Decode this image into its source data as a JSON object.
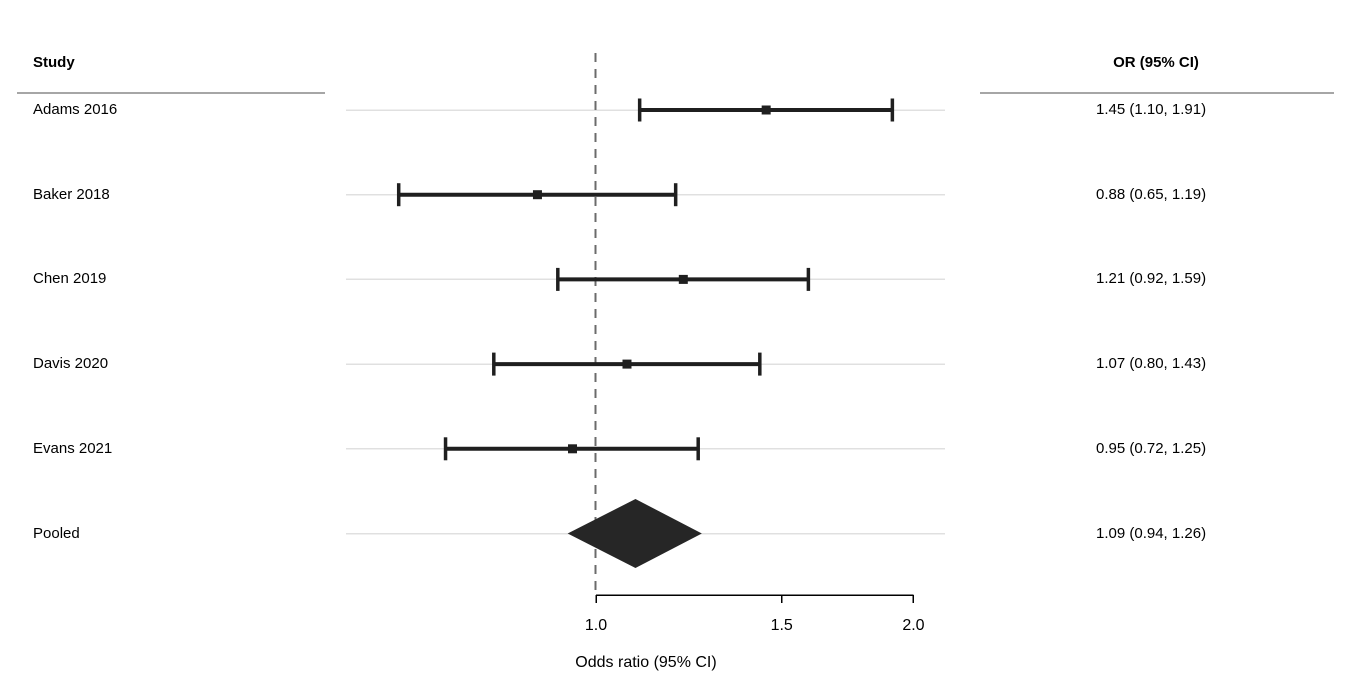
{
  "header": {
    "study_col": "Study",
    "or_col": "OR (95% CI)"
  },
  "chart_data": {
    "type": "forest",
    "title": "",
    "xlabel": "Odds ratio (95% CI)",
    "x_scale": "log",
    "x_ticks": [
      1.0,
      1.5,
      2.0
    ],
    "x_tick_labels": [
      "1.0",
      "1.5",
      "2.0"
    ],
    "reference_line": 1.0,
    "x_range_panel": [
      0.58,
      2.14
    ],
    "studies": [
      {
        "label": "Adams 2016",
        "or": 1.45,
        "ci_low": 1.1,
        "ci_high": 1.91,
        "display": "1.45 (1.10, 1.91)",
        "kind": "study"
      },
      {
        "label": "Baker 2018",
        "or": 0.88,
        "ci_low": 0.65,
        "ci_high": 1.19,
        "display": "0.88 (0.65, 1.19)",
        "kind": "study"
      },
      {
        "label": "Chen 2019",
        "or": 1.21,
        "ci_low": 0.92,
        "ci_high": 1.59,
        "display": "1.21 (0.92, 1.59)",
        "kind": "study"
      },
      {
        "label": "Davis 2020",
        "or": 1.07,
        "ci_low": 0.8,
        "ci_high": 1.43,
        "display": "1.07 (0.80, 1.43)",
        "kind": "study"
      },
      {
        "label": "Evans 2021",
        "or": 0.95,
        "ci_low": 0.72,
        "ci_high": 1.25,
        "display": "0.95 (0.72, 1.25)",
        "kind": "study"
      },
      {
        "label": "Pooled",
        "or": 1.09,
        "ci_low": 0.94,
        "ci_high": 1.26,
        "display": "1.09 (0.94, 1.26)",
        "kind": "pooled"
      }
    ],
    "colors": {
      "estimate": "#1f1f1f",
      "diamond": "#262626",
      "reference_line": "#6b6b6b",
      "row_gridline": "#e0e0e0",
      "header_rule": "#a6a6a6",
      "axis": "#000000",
      "text": "#000000"
    }
  }
}
